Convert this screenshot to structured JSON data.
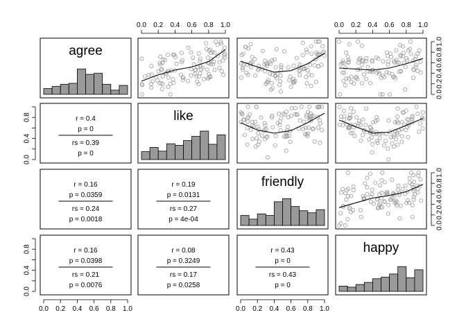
{
  "chart_data": {
    "type": "scatter",
    "variables": [
      "agree",
      "like",
      "friendly",
      "happy"
    ],
    "axis_range": [
      0,
      1
    ],
    "ticks": [
      "0.0",
      "0.2",
      "0.4",
      "0.6",
      "0.8",
      "1.0"
    ],
    "side_ticks": [
      "0.0",
      "0.4",
      "0.8"
    ],
    "histograms": {
      "agree": [
        0.11,
        0.15,
        0.19,
        0.21,
        0.48,
        0.38,
        0.4,
        0.19,
        0.08,
        0.17
      ],
      "like": [
        0.15,
        0.23,
        0.16,
        0.3,
        0.27,
        0.36,
        0.44,
        0.54,
        0.29,
        0.47
      ],
      "friendly": [
        0.19,
        0.12,
        0.22,
        0.19,
        0.45,
        0.51,
        0.36,
        0.28,
        0.24,
        0.3
      ],
      "happy": [
        0.1,
        0.08,
        0.13,
        0.17,
        0.24,
        0.27,
        0.33,
        0.47,
        0.26,
        0.41
      ]
    },
    "correlations": [
      {
        "row": "like",
        "col": "agree",
        "r": "r = 0.4",
        "p": "p = 0",
        "rs": "rs = 0.39",
        "ps": "p = 0"
      },
      {
        "row": "friendly",
        "col": "agree",
        "r": "r = 0.16",
        "p": "p = 0.0359",
        "rs": "rs = 0.24",
        "ps": "p = 0.0018"
      },
      {
        "row": "friendly",
        "col": "like",
        "r": "r = 0.19",
        "p": "p = 0.0131",
        "rs": "rs = 0.27",
        "ps": "p = 4e-04"
      },
      {
        "row": "happy",
        "col": "agree",
        "r": "r = 0.16",
        "p": "p = 0.0398",
        "rs": "rs = 0.21",
        "ps": "p = 0.0076"
      },
      {
        "row": "happy",
        "col": "like",
        "r": "r = 0.08",
        "p": "p = 0.3249",
        "rs": "rs = 0.17",
        "ps": "p = 0.0258"
      },
      {
        "row": "happy",
        "col": "friendly",
        "r": "r = 0.43",
        "p": "p = 0",
        "rs": "rs = 0.43",
        "ps": "p = 0"
      }
    ],
    "smooth_lines": [
      {
        "row": "agree",
        "col": "like",
        "x": [
          0,
          0.2,
          0.4,
          0.6,
          0.8,
          1.0
        ],
        "y": [
          0.25,
          0.37,
          0.46,
          0.52,
          0.62,
          0.85
        ]
      },
      {
        "row": "agree",
        "col": "friendly",
        "x": [
          0,
          0.2,
          0.4,
          0.6,
          0.8,
          1.0
        ],
        "y": [
          0.63,
          0.52,
          0.42,
          0.45,
          0.58,
          0.78
        ]
      },
      {
        "row": "agree",
        "col": "happy",
        "x": [
          0,
          0.2,
          0.4,
          0.6,
          0.8,
          1.0
        ],
        "y": [
          0.5,
          0.48,
          0.46,
          0.5,
          0.58,
          0.68
        ]
      },
      {
        "row": "like",
        "col": "friendly",
        "x": [
          0,
          0.2,
          0.4,
          0.6,
          0.8,
          1.0
        ],
        "y": [
          0.7,
          0.56,
          0.5,
          0.55,
          0.7,
          0.88
        ]
      },
      {
        "row": "like",
        "col": "happy",
        "x": [
          0,
          0.2,
          0.4,
          0.6,
          0.8,
          1.0
        ],
        "y": [
          0.75,
          0.62,
          0.5,
          0.52,
          0.65,
          0.78
        ]
      },
      {
        "row": "friendly",
        "col": "happy",
        "x": [
          0,
          0.2,
          0.4,
          0.6,
          0.8,
          1.0
        ],
        "y": [
          0.34,
          0.43,
          0.52,
          0.57,
          0.64,
          0.78
        ]
      }
    ],
    "point_style": "open circles, grey",
    "grid": false
  }
}
